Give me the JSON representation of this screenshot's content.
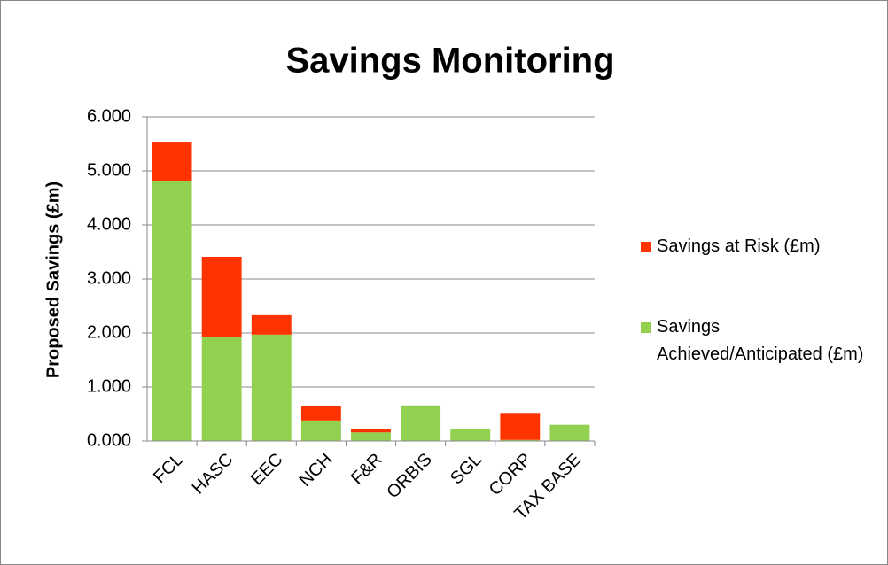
{
  "chart_data": {
    "type": "stacked-bar",
    "title": "Savings Monitoring",
    "y_label": "Proposed Savings (£m)",
    "categories": [
      "FCL",
      "HASC",
      "EEC",
      "NCH",
      "F&R",
      "ORBIS",
      "SGL",
      "CORP",
      "TAX BASE"
    ],
    "series": [
      {
        "name": "Savings Achieved/Anticipated (£m)",
        "color": "#92d050",
        "values": [
          4.82,
          1.93,
          1.97,
          0.38,
          0.16,
          0.66,
          0.23,
          0.02,
          0.3
        ]
      },
      {
        "name": "Savings at Risk (£m)",
        "color": "#ff3300",
        "values": [
          0.72,
          1.48,
          0.36,
          0.26,
          0.07,
          0,
          0,
          0.5,
          0
        ]
      }
    ],
    "ylim": [
      0,
      6
    ],
    "yticks": [
      {
        "value": 0,
        "label": "0.000"
      },
      {
        "value": 1,
        "label": "1.000"
      },
      {
        "value": 2,
        "label": "2.000"
      },
      {
        "value": 3,
        "label": "3.000"
      },
      {
        "value": 4,
        "label": "4.000"
      },
      {
        "value": 5,
        "label": "5.000"
      },
      {
        "value": 6,
        "label": "6.000"
      }
    ],
    "grid": true,
    "legend": "right"
  }
}
